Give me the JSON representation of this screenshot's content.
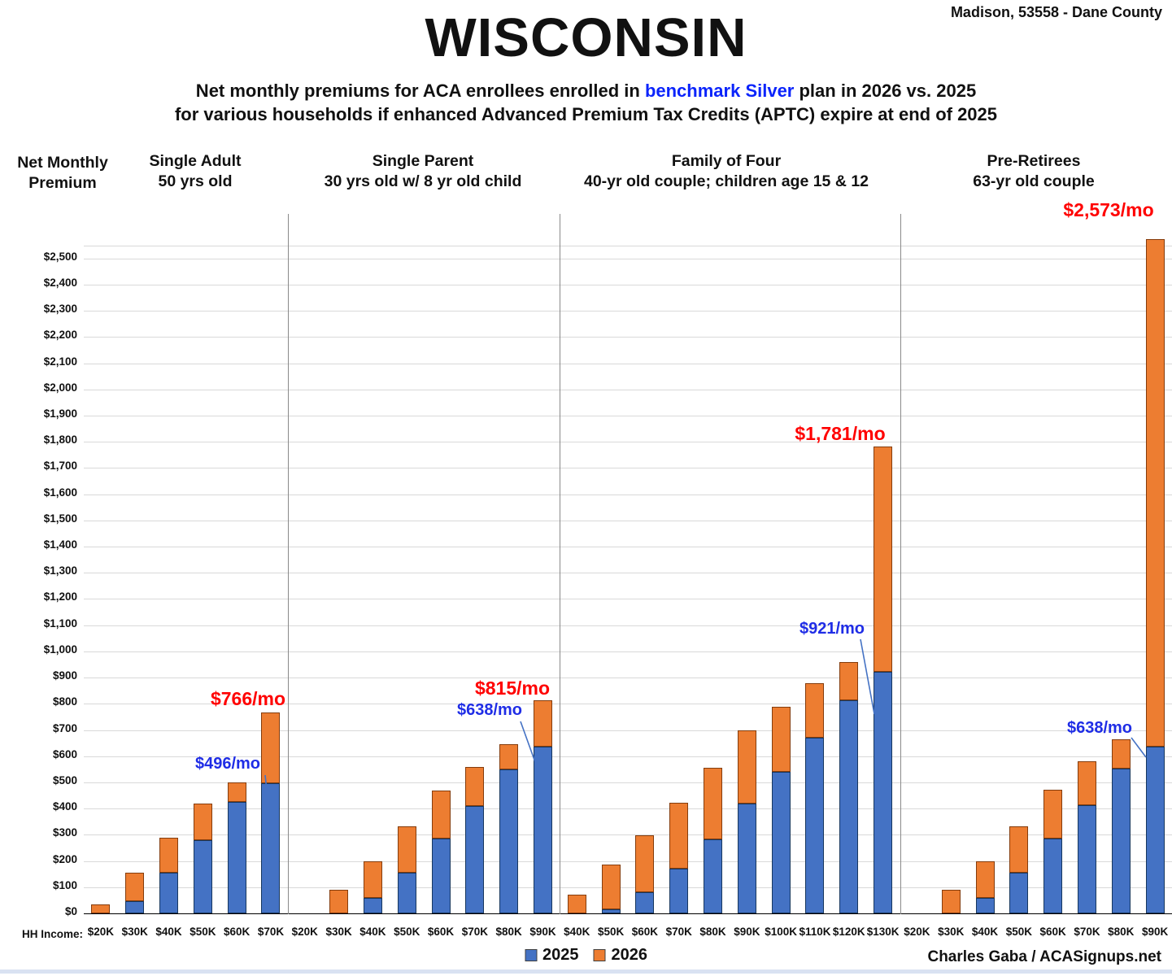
{
  "header": {
    "location": "Madison, 53558 - Dane County",
    "title": "WISCONSIN",
    "subtitle": {
      "pre": "Net monthly premiums for ACA enrollees enrolled in ",
      "highlight": "benchmark Silver",
      "post": " plan in 2026 vs. 2025",
      "line2": "for various households if enhanced Advanced Premium Tax Credits (APTC) expire at end of 2025"
    }
  },
  "y_axis_header": {
    "line1": "Net Monthly",
    "line2": "Premium"
  },
  "hh_income_label": "HH Income:",
  "legend": {
    "items": [
      {
        "label": "2025",
        "color": "#4472C4"
      },
      {
        "label": "2026",
        "color": "#ED7D31"
      }
    ]
  },
  "credit": "Charles Gaba / ACASignups.net",
  "colors": {
    "bar_2025_blue": "#4472C4",
    "bar_2026_orange": "#ED7D31",
    "annotation_red": "#FF0000",
    "annotation_blue": "#1F2DE6",
    "subtitle_highlight_blue": "#0B24FB"
  },
  "chart_data": {
    "type": "bar",
    "stacked": true,
    "note": "Blue segment = 2025 net premium; orange segment stacked on top extends to the 2026 net premium total.",
    "ylim": [
      0,
      2500
    ],
    "ytick_step": 100,
    "grid": true,
    "legend_position": "bottom-center",
    "series_names": [
      "2025",
      "2026"
    ],
    "groups": [
      {
        "name": "Single Adult",
        "detail": "50 yrs old",
        "categories": [
          "$20K",
          "$30K",
          "$40K",
          "$50K",
          "$60K",
          "$70K"
        ],
        "series": [
          {
            "name": "2025",
            "values": [
              0,
              48,
              155,
              280,
              424,
              496
            ]
          },
          {
            "name": "2026",
            "values": [
              33,
              155,
              288,
              418,
              500,
              766
            ]
          }
        ]
      },
      {
        "name": "Single Parent",
        "detail": "30 yrs old w/ 8 yr old child",
        "categories": [
          "$20K",
          "$30K",
          "$40K",
          "$50K",
          "$60K",
          "$70K",
          "$80K",
          "$90K"
        ],
        "series": [
          {
            "name": "2025",
            "values": [
              0,
              0,
              58,
              155,
              285,
              410,
              550,
              638
            ]
          },
          {
            "name": "2026",
            "values": [
              0,
              90,
              200,
              333,
              470,
              560,
              645,
              815
            ]
          }
        ]
      },
      {
        "name": "Family of Four",
        "detail": "40-yr old couple; children age 15 & 12",
        "categories": [
          "$40K",
          "$50K",
          "$60K",
          "$70K",
          "$80K",
          "$90K",
          "$100K",
          "$110K",
          "$120K",
          "$130K"
        ],
        "series": [
          {
            "name": "2025",
            "values": [
              0,
              15,
              80,
              170,
              283,
              419,
              540,
              670,
              815,
              921
            ]
          },
          {
            "name": "2026",
            "values": [
              70,
              185,
              298,
              422,
              557,
              700,
              790,
              878,
              960,
              1781
            ]
          }
        ]
      },
      {
        "name": "Pre-Retirees",
        "detail": "63-yr old couple",
        "categories": [
          "$20K",
          "$30K",
          "$40K",
          "$50K",
          "$60K",
          "$70K",
          "$80K",
          "$90K"
        ],
        "series": [
          {
            "name": "2025",
            "values": [
              0,
              0,
              58,
              155,
              285,
              413,
              553,
              638
            ]
          },
          {
            "name": "2026",
            "values": [
              0,
              90,
              200,
              333,
              472,
              580,
              663,
              2573
            ]
          }
        ]
      }
    ],
    "annotations": [
      {
        "id": "sa-2026",
        "text": "$766/mo",
        "color": "red",
        "refers_to": "Single Adult $70K 2026 premium"
      },
      {
        "id": "sa-2025",
        "text": "$496/mo",
        "color": "blue",
        "refers_to": "Single Adult $70K 2025 premium"
      },
      {
        "id": "sp-2026",
        "text": "$815/mo",
        "color": "red",
        "refers_to": "Single Parent $90K 2026 premium"
      },
      {
        "id": "sp-2025",
        "text": "$638/mo",
        "color": "blue",
        "refers_to": "Single Parent $90K 2025 premium"
      },
      {
        "id": "f4-2026",
        "text": "$1,781/mo",
        "color": "red",
        "refers_to": "Family of Four $130K 2026 premium"
      },
      {
        "id": "f4-2025",
        "text": "$921/mo",
        "color": "blue",
        "refers_to": "Family of Four $130K 2025 premium"
      },
      {
        "id": "pr-2026",
        "text": "$2,573/mo",
        "color": "red",
        "refers_to": "Pre-Retirees $90K 2026 premium"
      },
      {
        "id": "pr-2025",
        "text": "$638/mo",
        "color": "blue",
        "refers_to": "Pre-Retirees $90K 2025 premium"
      }
    ]
  }
}
